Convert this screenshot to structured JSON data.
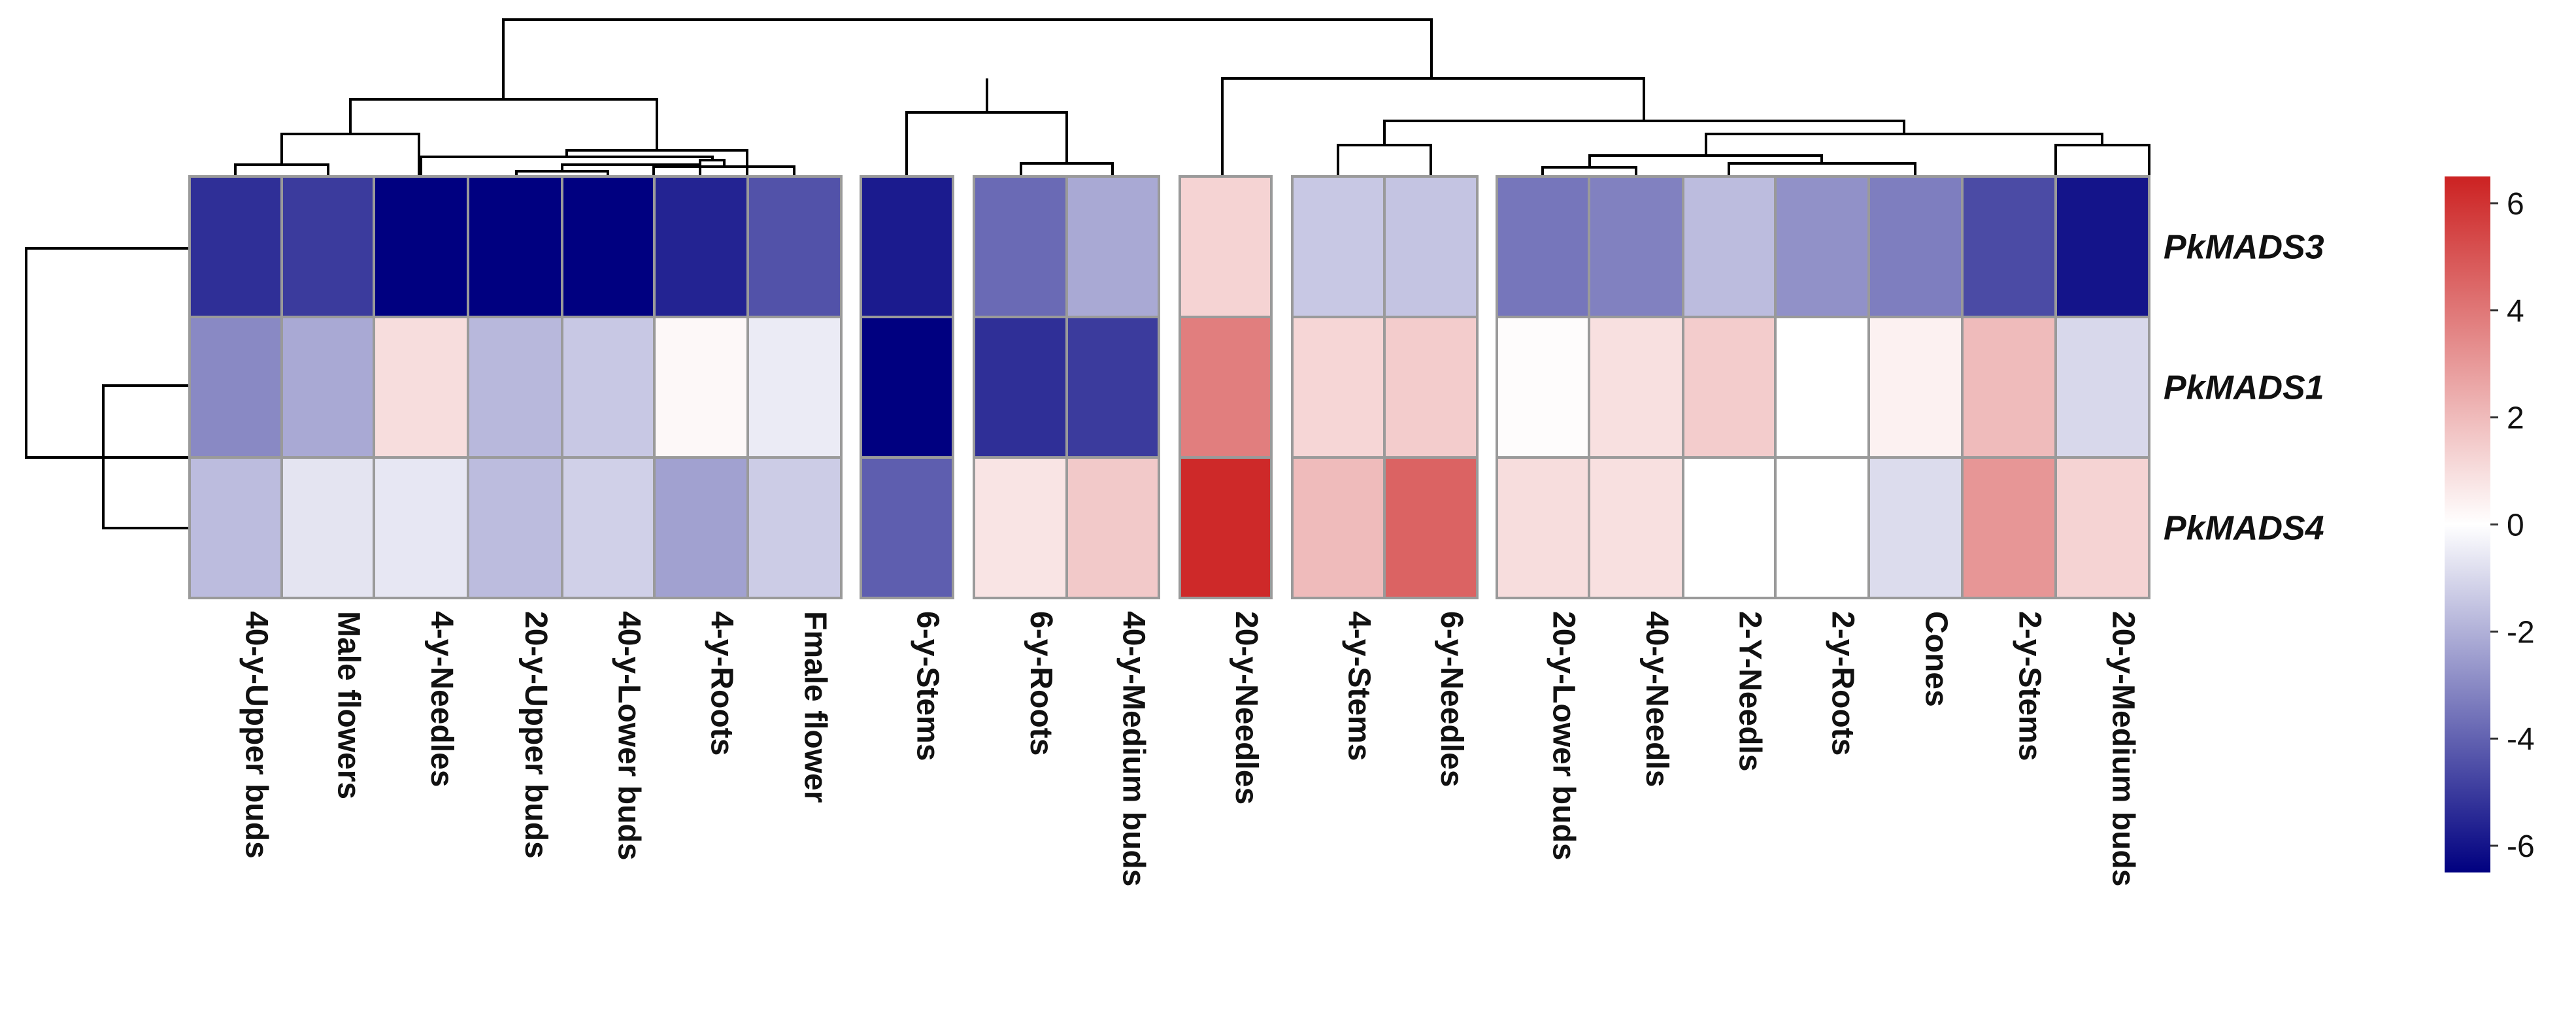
{
  "chart_data": {
    "type": "heatmap",
    "title": "",
    "rows": [
      "PkMADS3",
      "PkMADS1",
      "PkMADS4"
    ],
    "columns": [
      "40-y-Upper buds",
      "Male flowers",
      "4-y-Needles",
      "20-y-Upper buds",
      "40-y-Lower buds",
      "4-y-Roots",
      "Fmale flower",
      "6-y-Stems",
      "6-y-Roots",
      "40-y-Medium buds",
      "20-y-Needles",
      "4-y-Stems",
      "6-y-Needles",
      "20-y-Lower buds",
      "40-y-Needls",
      "2-Y-Needls",
      "2-y-Roots",
      "Cones",
      "2-y-Stems",
      "20-y-Medium buds"
    ],
    "column_groups": [
      [
        0,
        6
      ],
      [
        7,
        7
      ],
      [
        8,
        9
      ],
      [
        10,
        10
      ],
      [
        11,
        12
      ],
      [
        13,
        19
      ]
    ],
    "values": [
      [
        -5.3,
        -5.0,
        -6.5,
        -6.5,
        -6.5,
        -5.6,
        -4.4,
        -5.8,
        -3.8,
        -2.2,
        1.3,
        -1.4,
        -1.5,
        -3.5,
        -3.2,
        -1.7,
        -2.8,
        -3.3,
        -4.6,
        -6.0
      ],
      [
        -3.0,
        -2.2,
        1.0,
        -1.8,
        -1.4,
        0.2,
        -0.5,
        -6.5,
        -5.3,
        -5.0,
        3.8,
        1.2,
        1.5,
        0.1,
        0.9,
        1.5,
        0.0,
        0.4,
        2.0,
        -1.0
      ],
      [
        -1.7,
        -0.7,
        -0.6,
        -1.7,
        -1.2,
        -2.4,
        -1.3,
        -4.1,
        0.8,
        1.6,
        6.3,
        2.0,
        4.6,
        1.0,
        0.9,
        0.0,
        0.0,
        -0.9,
        3.1,
        1.3
      ]
    ],
    "colorbar": {
      "min": -6.5,
      "max": 6.5,
      "ticks": [
        6,
        4,
        2,
        0,
        -2,
        -4,
        -6
      ]
    },
    "colors": {
      "low": "#000080",
      "mid": "#ffffff",
      "high": "#cc2222",
      "grid": "#9a9a9a",
      "tree": "#000000"
    }
  }
}
